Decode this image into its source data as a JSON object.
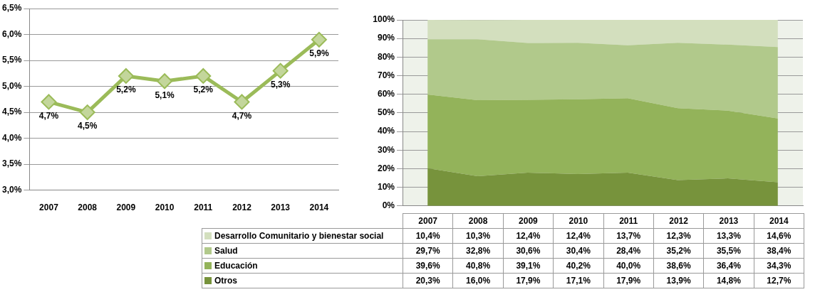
{
  "chart_data": [
    {
      "type": "line",
      "categories": [
        "2007",
        "2008",
        "2009",
        "2010",
        "2011",
        "2012",
        "2013",
        "2014"
      ],
      "series": [
        {
          "color": "#9bbb59",
          "values": [
            4.7,
            4.5,
            5.2,
            5.1,
            5.2,
            4.7,
            5.3,
            5.9
          ],
          "value_labels": [
            "4,7%",
            "4,5%",
            "5,2%",
            "5,1%",
            "5,2%",
            "4,7%",
            "5,3%",
            "5,9%"
          ]
        }
      ],
      "ylim": [
        3.0,
        6.5
      ],
      "yticks": [
        {
          "value": 3.0,
          "label": "3,0%"
        },
        {
          "value": 3.5,
          "label": "3,5%"
        },
        {
          "value": 4.0,
          "label": "4,0%"
        },
        {
          "value": 4.5,
          "label": "4,5%"
        },
        {
          "value": 5.0,
          "label": "5,0%"
        },
        {
          "value": 5.5,
          "label": "5,5%"
        },
        {
          "value": 6.0,
          "label": "6,0%"
        },
        {
          "value": 6.5,
          "label": "6,5%"
        }
      ],
      "grid": "y",
      "marker": "diamond",
      "line_style": "solid"
    },
    {
      "type": "area",
      "stacked": true,
      "categories": [
        "2007",
        "2008",
        "2009",
        "2010",
        "2011",
        "2012",
        "2013",
        "2014"
      ],
      "series": [
        {
          "name": "Otros",
          "color": "#77933c",
          "values": [
            20.3,
            16.0,
            17.9,
            17.1,
            17.9,
            13.9,
            14.8,
            12.7
          ],
          "value_labels": [
            "20,3%",
            "16,0%",
            "17,9%",
            "17,1%",
            "17,9%",
            "13,9%",
            "14,8%",
            "12,7%"
          ]
        },
        {
          "name": "Educación",
          "color": "#93b35a",
          "values": [
            39.6,
            40.8,
            39.1,
            40.2,
            40.0,
            38.6,
            36.4,
            34.3
          ],
          "value_labels": [
            "39,6%",
            "40,8%",
            "39,1%",
            "40,2%",
            "40,0%",
            "38,6%",
            "36,4%",
            "34,3%"
          ]
        },
        {
          "name": "Salud",
          "color": "#b1c98b",
          "values": [
            29.7,
            32.8,
            30.6,
            30.4,
            28.4,
            35.2,
            35.5,
            38.4
          ],
          "value_labels": [
            "29,7%",
            "32,8%",
            "30,6%",
            "30,4%",
            "28,4%",
            "35,2%",
            "35,5%",
            "38,4%"
          ]
        },
        {
          "name": "Desarrollo Comunitario y bienestar social",
          "color": "#d3dfbe",
          "values": [
            10.4,
            10.3,
            12.4,
            12.4,
            13.7,
            12.3,
            13.3,
            14.6
          ],
          "value_labels": [
            "10,4%",
            "10,3%",
            "12,4%",
            "12,4%",
            "13,7%",
            "12,3%",
            "13,3%",
            "14,6%"
          ]
        }
      ],
      "ylim": [
        0,
        100
      ],
      "yticks": [
        {
          "value": 0,
          "label": "0%"
        },
        {
          "value": 10,
          "label": "10%"
        },
        {
          "value": 20,
          "label": "20%"
        },
        {
          "value": 30,
          "label": "30%"
        },
        {
          "value": 40,
          "label": "40%"
        },
        {
          "value": 50,
          "label": "50%"
        },
        {
          "value": 60,
          "label": "60%"
        },
        {
          "value": 70,
          "label": "70%"
        },
        {
          "value": 80,
          "label": "80%"
        },
        {
          "value": 90,
          "label": "90%"
        },
        {
          "value": 100,
          "label": "100%"
        }
      ],
      "grid": "y",
      "tick_labels": "y",
      "legend": "bottom"
    }
  ]
}
